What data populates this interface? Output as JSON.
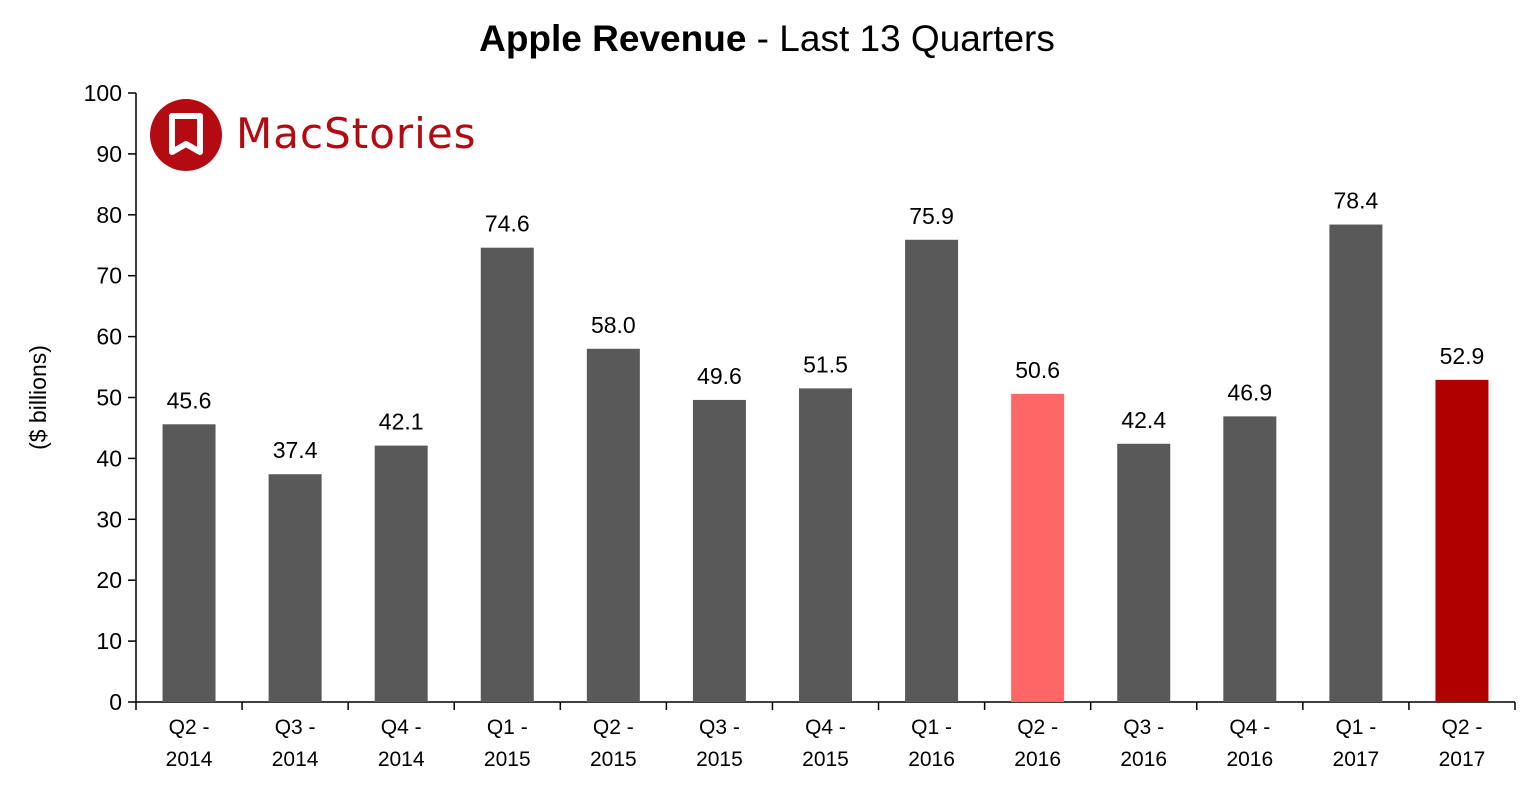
{
  "title": {
    "bold": "Apple Revenue",
    "rest": " - Last 13 Quarters"
  },
  "logo": {
    "text": "MacStories"
  },
  "colors": {
    "bar": "#595959",
    "highlight_light": "#ff6666",
    "highlight_dark": "#b00000",
    "brand": "#b40a12"
  },
  "chart_data": {
    "type": "bar",
    "title": "Apple Revenue - Last 13 Quarters",
    "ylabel": "($ billions)",
    "xlabel": "",
    "ylim": [
      0,
      100
    ],
    "yticks": [
      0,
      10,
      20,
      30,
      40,
      50,
      60,
      70,
      80,
      90,
      100
    ],
    "categories": [
      [
        "Q2 -",
        "2014"
      ],
      [
        "Q3 -",
        "2014"
      ],
      [
        "Q4 -",
        "2014"
      ],
      [
        "Q1 -",
        "2015"
      ],
      [
        "Q2 -",
        "2015"
      ],
      [
        "Q3 -",
        "2015"
      ],
      [
        "Q4 -",
        "2015"
      ],
      [
        "Q1 -",
        "2016"
      ],
      [
        "Q2 -",
        "2016"
      ],
      [
        "Q3 -",
        "2016"
      ],
      [
        "Q4 -",
        "2016"
      ],
      [
        "Q1 -",
        "2017"
      ],
      [
        "Q2 -",
        "2017"
      ]
    ],
    "values": [
      45.6,
      37.4,
      42.1,
      74.6,
      58.0,
      49.6,
      51.5,
      75.9,
      50.6,
      42.4,
      46.9,
      78.4,
      52.9
    ],
    "labels": [
      "45.6",
      "37.4",
      "42.1",
      "74.6",
      "58.0",
      "49.6",
      "51.5",
      "75.9",
      "50.6",
      "42.4",
      "46.9",
      "78.4",
      "52.9"
    ],
    "bar_colors": [
      "#595959",
      "#595959",
      "#595959",
      "#595959",
      "#595959",
      "#595959",
      "#595959",
      "#595959",
      "#ff6666",
      "#595959",
      "#595959",
      "#595959",
      "#b00000"
    ],
    "grid": false,
    "legend": "none"
  }
}
